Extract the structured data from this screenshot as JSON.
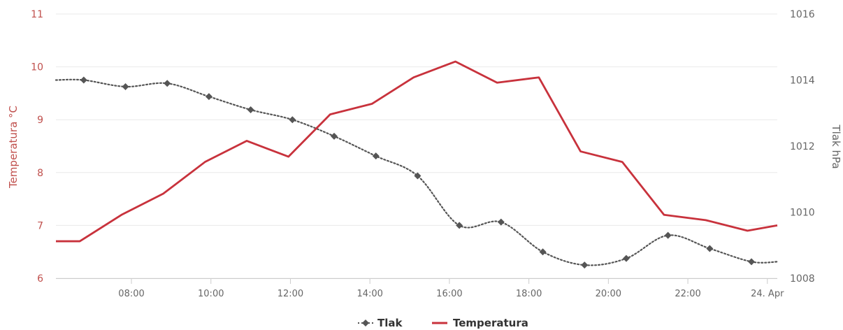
{
  "colors": {
    "temperature": "#c8323c",
    "pressure": "#555555",
    "grid": "#e9e9e9",
    "axis_text_left": "#c0504d",
    "axis_text_right": "#666666"
  },
  "chart_data": {
    "type": "line",
    "x_ticks": [
      "08:00",
      "10:00",
      "12:00",
      "14:00",
      "16:00",
      "18:00",
      "20:00",
      "22:00",
      "24. Apr"
    ],
    "x_tick_hours": [
      8,
      10,
      12,
      14,
      16,
      18,
      20,
      22,
      24
    ],
    "xlim_hours": [
      6.1,
      24.25
    ],
    "y_left": {
      "label": "Temperatura °C",
      "ticks": [
        6,
        7,
        8,
        9,
        10,
        11
      ],
      "ylim": [
        6,
        11
      ]
    },
    "y_right": {
      "label": "Tlak hPa",
      "ticks": [
        1008,
        1010,
        1012,
        1014,
        1016
      ],
      "ylim": [
        1008,
        1016
      ]
    },
    "legend_position": "bottom-center",
    "series": [
      {
        "name": "Tlak",
        "axis": "right",
        "style": "dotted-with-diamond-markers",
        "x_hours": [
          6.1,
          6.8,
          7.85,
          8.9,
          9.95,
          11.0,
          12.05,
          13.1,
          14.15,
          15.2,
          16.25,
          17.3,
          18.35,
          19.4,
          20.45,
          21.5,
          22.55,
          23.6,
          24.25
        ],
        "values": [
          1014.0,
          1014.0,
          1013.8,
          1013.9,
          1013.5,
          1013.1,
          1012.8,
          1012.3,
          1011.7,
          1011.1,
          1009.6,
          1009.7,
          1008.8,
          1008.4,
          1008.6,
          1009.3,
          1008.9,
          1008.5,
          1008.5
        ],
        "markers": [
          false,
          true,
          true,
          true,
          true,
          true,
          true,
          true,
          true,
          true,
          true,
          true,
          true,
          true,
          true,
          true,
          true,
          true,
          false
        ]
      },
      {
        "name": "Temperatura",
        "axis": "left",
        "style": "solid",
        "x_hours": [
          6.1,
          6.7,
          7.75,
          8.8,
          9.85,
          10.9,
          11.95,
          13.0,
          14.05,
          15.1,
          16.15,
          17.2,
          18.25,
          19.3,
          20.35,
          21.4,
          22.45,
          23.5,
          24.25
        ],
        "values": [
          6.7,
          6.7,
          7.2,
          7.6,
          8.2,
          8.6,
          8.3,
          9.1,
          9.3,
          9.8,
          10.1,
          9.7,
          9.8,
          8.4,
          8.2,
          7.2,
          7.1,
          6.9,
          7.0
        ]
      }
    ]
  }
}
